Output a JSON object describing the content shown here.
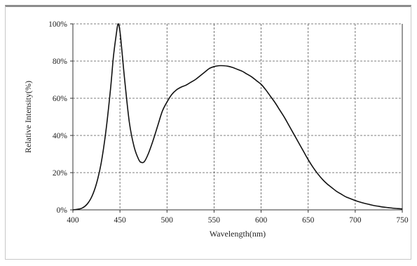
{
  "chart_data": {
    "type": "line",
    "title": "",
    "xlabel": "Wavelength(nm)",
    "ylabel": "Relative Intensity(%)",
    "xlim": [
      400,
      750
    ],
    "ylim": [
      0,
      100
    ],
    "x_ticks": [
      400,
      450,
      500,
      550,
      600,
      650,
      700,
      750
    ],
    "y_ticks": [
      0,
      20,
      40,
      60,
      80,
      100
    ],
    "y_tick_labels": [
      "0%",
      "20%",
      "40%",
      "60%",
      "80%",
      "100%"
    ],
    "grid": true,
    "legend": "none",
    "colors": {
      "line": "#111111",
      "grid": "#555555",
      "axis": "#333333"
    },
    "series": [
      {
        "x": [
          400,
          405,
          410,
          415,
          420,
          425,
          430,
          435,
          440,
          443,
          446,
          448,
          450,
          452,
          455,
          460,
          465,
          470,
          473,
          476,
          480,
          485,
          490,
          495,
          500,
          505,
          510,
          515,
          520,
          525,
          530,
          535,
          540,
          545,
          550,
          555,
          560,
          565,
          570,
          575,
          580,
          585,
          590,
          595,
          600,
          605,
          610,
          615,
          620,
          625,
          630,
          635,
          640,
          645,
          650,
          655,
          660,
          665,
          670,
          675,
          680,
          685,
          690,
          695,
          700,
          705,
          710,
          715,
          720,
          725,
          730,
          735,
          740,
          745,
          750
        ],
        "y": [
          0,
          0.3,
          1,
          3,
          7,
          14,
          25,
          42,
          65,
          82,
          94,
          100,
          96,
          86,
          70,
          47,
          34,
          27,
          25.5,
          26,
          30,
          37,
          45,
          53,
          58,
          62,
          64.5,
          66,
          67,
          68.5,
          70,
          72,
          74,
          76,
          77,
          77.5,
          77.5,
          77.2,
          76.5,
          75.5,
          74.5,
          73,
          71.5,
          69.5,
          67.5,
          64.5,
          61,
          57.5,
          53.5,
          49.5,
          45,
          40.5,
          36,
          31.5,
          27,
          23,
          19.5,
          16.5,
          14,
          12,
          10,
          8.5,
          7,
          6,
          5,
          4.2,
          3.5,
          2.9,
          2.3,
          1.9,
          1.5,
          1.2,
          0.9,
          0.7,
          0.5
        ]
      }
    ]
  }
}
